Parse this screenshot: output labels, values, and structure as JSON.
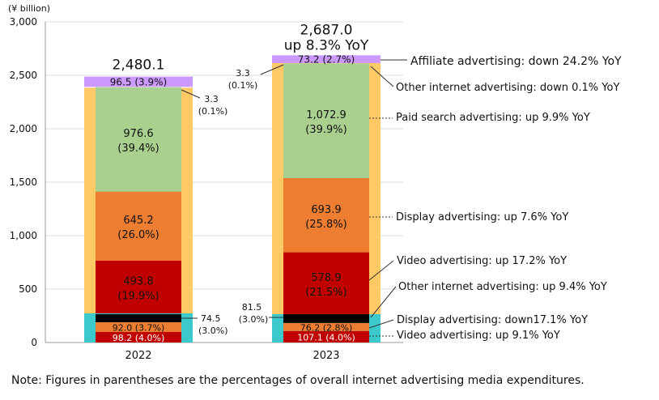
{
  "chart_data": {
    "type": "bar",
    "ylabel": "(¥ billion)",
    "ylim": [
      0,
      3000
    ],
    "yticks": [
      "0",
      "500",
      "1,000",
      "1,500",
      "2,000",
      "2,500",
      "3,000"
    ],
    "ytick_values": [
      0,
      500,
      1000,
      1500,
      2000,
      2500,
      3000
    ],
    "categories": [
      "2022",
      "2023"
    ],
    "bars": [
      {
        "year": "2022",
        "total_label": "2,480.1",
        "yoy_label": "",
        "total": 2480.1,
        "segments": [
          {
            "name": "video-cyan-frame",
            "value": 272.7,
            "color": "#3cc9cc",
            "frame": true
          },
          {
            "name": "video-small",
            "value": 98.2,
            "color": "#c00000",
            "line1": "98.2 (4.0%)",
            "line2": "",
            "text_color": "#ffffff"
          },
          {
            "name": "display-small",
            "value": 92.0,
            "color": "#ed7d31",
            "line1": "92.0 (3.7%)",
            "line2": "",
            "text_color": "#111111"
          },
          {
            "name": "other-small",
            "value": 74.5,
            "color": "#000000",
            "line1": "",
            "line2": "",
            "text_color": "#ffffff"
          },
          {
            "name": "yellow-frame",
            "value": 2110.9,
            "color": "#ffc966",
            "frame": true
          },
          {
            "name": "video",
            "value": 493.8,
            "color": "#c00000",
            "line1": "493.8",
            "line2": "(19.9%)",
            "text_color": "#111111"
          },
          {
            "name": "display",
            "value": 645.2,
            "color": "#ed7d31",
            "line1": "645.2",
            "line2": "(26.0%)",
            "text_color": "#111111"
          },
          {
            "name": "paid-search",
            "value": 976.6,
            "color": "#a9d08e",
            "line1": "976.6",
            "line2": "(39.4%)",
            "text_color": "#111111"
          },
          {
            "name": "other-internet",
            "value": 3.3,
            "color": "#ffc966",
            "line1": "",
            "line2": "",
            "text_color": "#111111"
          },
          {
            "name": "affiliate",
            "value": 96.5,
            "color": "#cc99ff",
            "line1": "96.5 (3.9%)",
            "line2": "",
            "text_color": "#111111"
          }
        ]
      },
      {
        "year": "2023",
        "total_label": "2,687.0",
        "yoy_label": "up 8.3% YoY",
        "total": 2687.0,
        "segments": [
          {
            "name": "video-cyan-frame",
            "value": 265.0,
            "color": "#3cc9cc",
            "frame": true
          },
          {
            "name": "video-small",
            "value": 107.1,
            "color": "#c00000",
            "line1": "107.1 (4.0%)",
            "line2": "",
            "text_color": "#ffffff"
          },
          {
            "name": "display-small",
            "value": 76.2,
            "color": "#ed7d31",
            "line1": "76.2 (2.8%)",
            "line2": "",
            "text_color": "#111111"
          },
          {
            "name": "other-small",
            "value": 81.5,
            "color": "#000000",
            "line1": "",
            "line2": "",
            "text_color": "#ffffff"
          },
          {
            "name": "yellow-frame",
            "value": 2348.0,
            "color": "#ffc966",
            "frame": true
          },
          {
            "name": "video",
            "value": 578.9,
            "color": "#c00000",
            "line1": "578.9",
            "line2": "(21.5%)",
            "text_color": "#111111"
          },
          {
            "name": "display",
            "value": 693.9,
            "color": "#ed7d31",
            "line1": "693.9",
            "line2": "(25.8%)",
            "text_color": "#111111"
          },
          {
            "name": "paid-search",
            "value": 1072.9,
            "color": "#a9d08e",
            "line1": "1,072.9",
            "line2": "(39.9%)",
            "text_color": "#111111"
          },
          {
            "name": "other-internet",
            "value": 3.3,
            "color": "#ffc966",
            "line1": "",
            "line2": "",
            "text_color": "#111111"
          },
          {
            "name": "affiliate",
            "value": 73.2,
            "color": "#cc99ff",
            "line1": "73.2 (2.7%)",
            "line2": "",
            "text_color": "#111111"
          }
        ]
      }
    ],
    "callouts": [
      {
        "name": "callout-2022-other-internet",
        "lines": [
          "3.3",
          "(0.1%)"
        ]
      },
      {
        "name": "callout-2022-other-small",
        "lines": [
          "74.5",
          "(3.0%)"
        ]
      },
      {
        "name": "callout-2023-other-internet",
        "lines": [
          "3.3",
          "(0.1%)"
        ]
      },
      {
        "name": "callout-2023-other-small",
        "lines": [
          "81.5",
          "(3.0%)"
        ]
      }
    ],
    "annotations": [
      {
        "name": "annotation-affiliate",
        "text": "Affiliate advertising: down 24.2% YoY"
      },
      {
        "name": "annotation-other-internet-down",
        "text": "Other internet advertising: down 0.1% YoY"
      },
      {
        "name": "annotation-paid-search",
        "text": "Paid search advertising: up 9.9% YoY"
      },
      {
        "name": "annotation-display-up",
        "text": "Display advertising: up 7.6% YoY"
      },
      {
        "name": "annotation-video-up",
        "text": "Video advertising: up 17.2% YoY"
      },
      {
        "name": "annotation-other-internet-up",
        "text": "Other internet advertising: up 9.4% YoY"
      },
      {
        "name": "annotation-display-down",
        "text": "Display advertising: down17.1% YoY"
      },
      {
        "name": "annotation-video-small-up",
        "text": "Video advertising: up 9.1% YoY"
      }
    ]
  },
  "note": "Note: Figures in parentheses are the percentages of overall internet advertising media expenditures."
}
